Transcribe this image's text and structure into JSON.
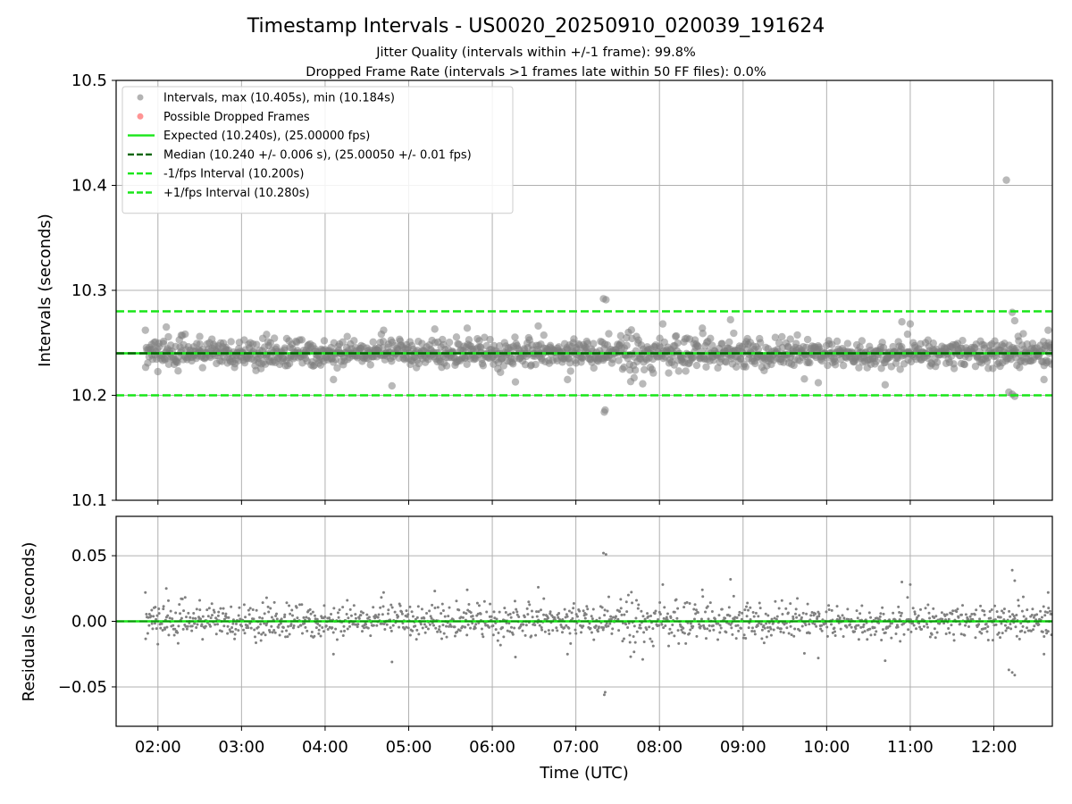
{
  "chart_data": {
    "type": "scatter",
    "title": "Timestamp Intervals - US0020_20250910_020039_191624",
    "subtitles": [
      "Jitter Quality (intervals within +/-1 frame): 99.8%",
      "Dropped Frame Rate (intervals >1 frames late within 50 FF files): 0.0%"
    ],
    "xlabel": "Time (UTC)",
    "x_ticks": [
      "02:00",
      "03:00",
      "04:00",
      "05:00",
      "06:00",
      "07:00",
      "08:00",
      "09:00",
      "10:00",
      "11:00",
      "12:00"
    ],
    "xlim_hours": [
      1.5,
      12.7
    ],
    "grid": true,
    "legend_position": "upper-left",
    "colors": {
      "points": "#808080",
      "dropped": "#ff4c4c",
      "expected": "#19e619",
      "median": "#006400",
      "bounds": "#19e619"
    },
    "panels": [
      {
        "ylabel": "Intervals (seconds)",
        "ylim": [
          10.1,
          10.5
        ],
        "y_ticks": [
          "10.1",
          "10.2",
          "10.3",
          "10.4",
          "10.5"
        ],
        "lines": [
          {
            "role": "expected",
            "value": 10.24
          },
          {
            "role": "median",
            "value": 10.24
          },
          {
            "role": "lower_bound",
            "value": 10.2
          },
          {
            "role": "upper_bound",
            "value": 10.28
          }
        ],
        "series": [
          {
            "name": "Intervals, max (10.405s), min (10.184s)",
            "color": "#808080",
            "center": 10.24,
            "spread": 0.0065,
            "outliers": [
              [
                12.15,
                10.405
              ],
              [
                7.33,
                10.292
              ],
              [
                7.36,
                10.291
              ],
              [
                7.35,
                10.186
              ],
              [
                7.34,
                10.184
              ],
              [
                12.22,
                10.201
              ],
              [
                12.18,
                10.203
              ],
              [
                12.25,
                10.199
              ],
              [
                12.22,
                10.279
              ],
              [
                12.25,
                10.271
              ],
              [
                4.8,
                10.209
              ],
              [
                6.9,
                10.215
              ],
              [
                8.85,
                10.272
              ],
              [
                10.9,
                10.27
              ],
              [
                11.0,
                10.268
              ],
              [
                4.7,
                10.262
              ],
              [
                6.55,
                10.266
              ],
              [
                5.7,
                10.264
              ],
              [
                1.85,
                10.262
              ],
              [
                2.1,
                10.265
              ],
              [
                3.3,
                10.258
              ],
              [
                2.5,
                10.256
              ],
              [
                12.65,
                10.262
              ],
              [
                4.1,
                10.215
              ],
              [
                9.9,
                10.212
              ],
              [
                10.7,
                10.21
              ],
              [
                12.6,
                10.215
              ]
            ]
          },
          {
            "name": "Possible Dropped Frames",
            "color": "#ff4c4c",
            "values": []
          }
        ],
        "legend": [
          {
            "label": "Intervals, max (10.405s), min (10.184s)",
            "kind": "marker",
            "color": "#808080"
          },
          {
            "label": "Possible Dropped Frames",
            "kind": "marker",
            "color": "#ff4c4c"
          },
          {
            "label": "Expected (10.240s), (25.00000 fps)",
            "kind": "solid",
            "color": "#19e619"
          },
          {
            "label": "Median (10.240 +/- 0.006 s), (25.00050 +/- 0.01 fps)",
            "kind": "dashed",
            "color": "#006400"
          },
          {
            "label": "-1/fps Interval (10.200s)",
            "kind": "dashed",
            "color": "#19e619"
          },
          {
            "label": "+1/fps Interval (10.280s)",
            "kind": "dashed",
            "color": "#19e619"
          }
        ]
      },
      {
        "ylabel": "Residuals (seconds)",
        "ylim": [
          -0.08,
          0.08
        ],
        "y_ticks": [
          "0.05",
          "0.00",
          "−0.05"
        ],
        "y_tick_values": [
          0.05,
          0.0,
          -0.05
        ],
        "lines": [
          {
            "role": "zero",
            "value": 0.0
          }
        ]
      }
    ]
  }
}
